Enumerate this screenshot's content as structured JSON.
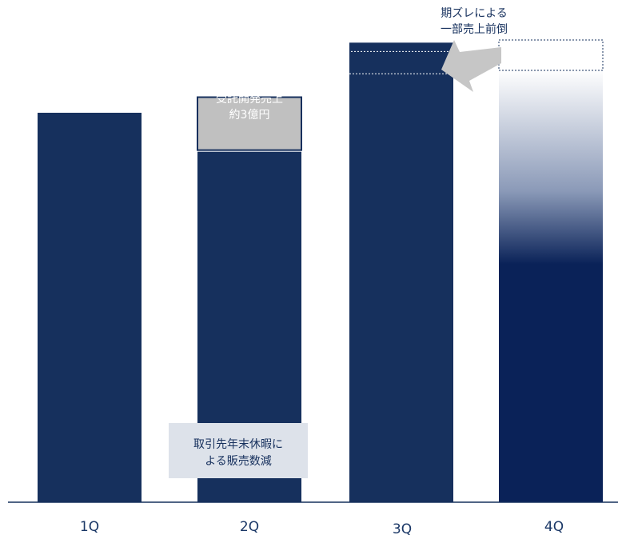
{
  "chart_data": {
    "type": "bar",
    "categories": [
      "1Q",
      "2Q",
      "3Q",
      "4Q"
    ],
    "series": [
      {
        "values": [
          100,
          90,
          118,
          116
        ]
      }
    ],
    "segments": {
      "2Q_contract_development": 14,
      "3Q_pulled_forward": 8,
      "4Q_pulled_forward_gap": 8
    },
    "ylim": [
      0,
      125
    ],
    "grid": false,
    "legend": "none",
    "annotations": {
      "contract_dev": [
        "受託開発売上",
        "約3億円"
      ],
      "holiday": [
        "取引先年末休暇に",
        "よる販売数減"
      ],
      "timing": [
        "期ズレによる",
        "一部売上前倒"
      ]
    },
    "colors": {
      "bar": "#16305d",
      "bar_4q": "#0a2258",
      "contract_box": "#c0c0c0",
      "holiday_box": "#dde2ea",
      "arrow": "#c6c6c6",
      "axis": "#16305d"
    }
  }
}
